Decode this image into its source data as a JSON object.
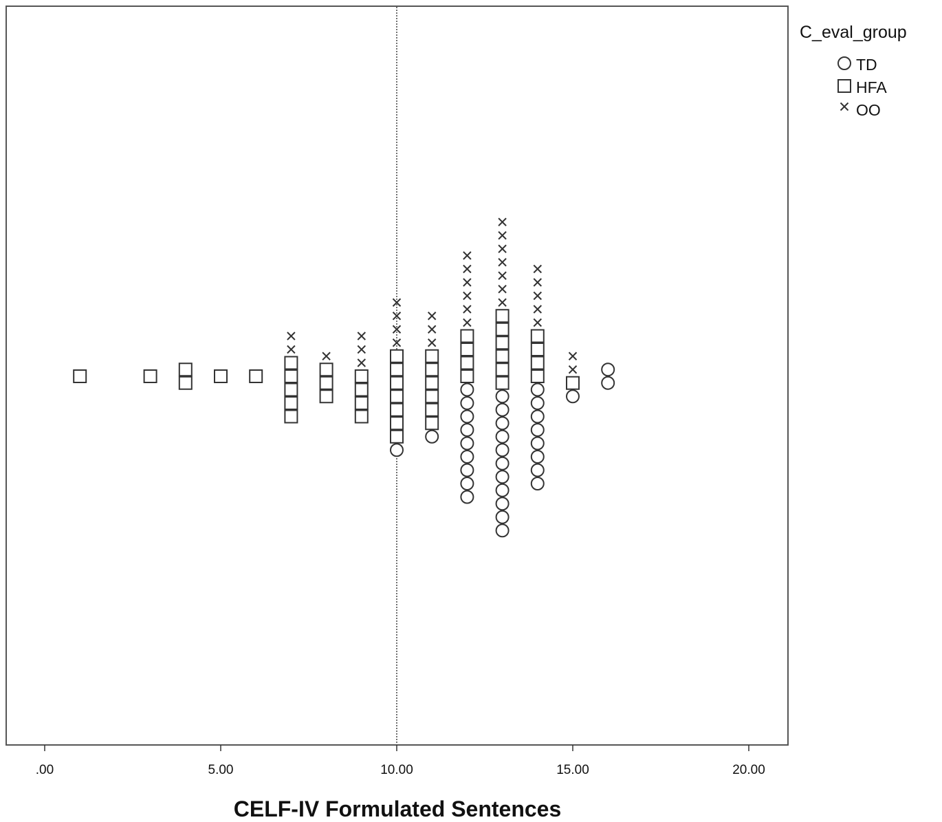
{
  "chart_data": {
    "type": "scatter",
    "subtype": "stacked-dot-plot",
    "xlabel": "CELF-IV Formulated Sentences",
    "xlim": [
      0,
      20
    ],
    "x_ticks": [
      ".00",
      "5.00",
      "10.00",
      "15.00",
      "20.00"
    ],
    "x_tick_values": [
      0,
      5,
      10,
      15,
      20
    ],
    "reference_line": {
      "x": 10,
      "style": "dotted"
    },
    "grid": false,
    "legend": {
      "title": "C_eval_group",
      "placement": "top-right, outside plot",
      "entries": [
        {
          "label": "TD",
          "marker": "circle"
        },
        {
          "label": "HFA",
          "marker": "square"
        },
        {
          "label": "OO",
          "marker": "x"
        }
      ]
    },
    "columns": [
      {
        "x": 1,
        "TD": 0,
        "HFA": 1,
        "OO": 0
      },
      {
        "x": 3,
        "TD": 0,
        "HFA": 1,
        "OO": 0
      },
      {
        "x": 4,
        "TD": 0,
        "HFA": 2,
        "OO": 0
      },
      {
        "x": 5,
        "TD": 0,
        "HFA": 1,
        "OO": 0
      },
      {
        "x": 6,
        "TD": 0,
        "HFA": 1,
        "OO": 0
      },
      {
        "x": 7,
        "TD": 0,
        "HFA": 5,
        "OO": 2
      },
      {
        "x": 8,
        "TD": 0,
        "HFA": 3,
        "OO": 1
      },
      {
        "x": 9,
        "TD": 0,
        "HFA": 4,
        "OO": 3
      },
      {
        "x": 10,
        "TD": 1,
        "HFA": 7,
        "OO": 4
      },
      {
        "x": 11,
        "TD": 1,
        "HFA": 6,
        "OO": 3
      },
      {
        "x": 12,
        "TD": 9,
        "HFA": 4,
        "OO": 6
      },
      {
        "x": 13,
        "TD": 11,
        "HFA": 6,
        "OO": 7
      },
      {
        "x": 14,
        "TD": 8,
        "HFA": 4,
        "OO": 5
      },
      {
        "x": 15,
        "TD": 1,
        "HFA": 1,
        "OO": 2
      },
      {
        "x": 16,
        "TD": 2,
        "HFA": 0,
        "OO": 0
      }
    ]
  }
}
